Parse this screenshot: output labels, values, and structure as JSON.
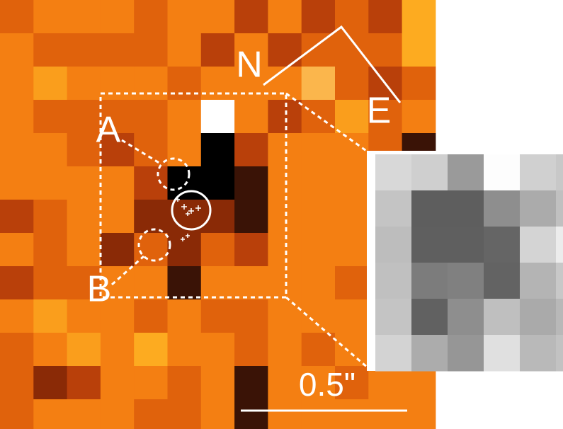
{
  "labels": {
    "north": "N",
    "east": "E",
    "a": "A",
    "b": "B",
    "scale": "0.5\""
  }
}
